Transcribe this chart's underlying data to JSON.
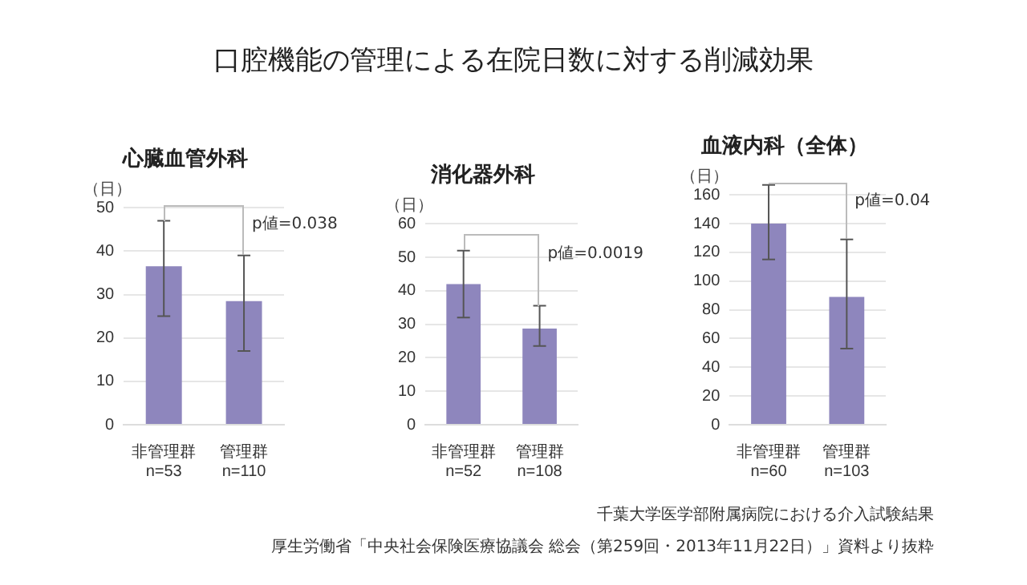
{
  "chart_data": [
    {
      "type": "other",
      "title": "口腔機能の管理による在院日数に対する削減効果",
      "annotations": [
        "千葉大学医学部附属病院における介入試験結果",
        "厚生労働省「中央社会保険医療協議会 総会（第259回・2013年11月22日）」資料より抜粋"
      ]
    },
    {
      "type": "bar",
      "title": "心臓血管外科",
      "ylabel": "（日）",
      "categories": [
        "非管理群\nn=53",
        "管理群\nn=110"
      ],
      "values": [
        36.5,
        28.5
      ],
      "errors": [
        [
          25,
          47
        ],
        [
          17,
          39
        ]
      ],
      "color": "#8e86bd",
      "ylim": [
        0,
        50
      ],
      "yticks": [
        0,
        10,
        20,
        30,
        40,
        50
      ],
      "grid": "y",
      "annotations": [
        "p値=0.038"
      ]
    },
    {
      "type": "bar",
      "title": "消化器外科",
      "ylabel": "（日）",
      "categories": [
        "非管理群\nn=52",
        "管理群\nn=108"
      ],
      "values": [
        42,
        28.7
      ],
      "errors": [
        [
          32,
          52
        ],
        [
          23.5,
          35.5
        ]
      ],
      "color": "#8e86bd",
      "ylim": [
        0,
        60
      ],
      "yticks": [
        0,
        10,
        20,
        30,
        40,
        50,
        60
      ],
      "grid": "y",
      "annotations": [
        "p値=0.0019"
      ]
    },
    {
      "type": "bar",
      "title": "血液内科（全体）",
      "ylabel": "（日）",
      "categories": [
        "非管理群\nn=60",
        "管理群\nn=103"
      ],
      "values": [
        140,
        89
      ],
      "errors": [
        [
          115,
          167
        ],
        [
          53,
          129
        ]
      ],
      "color": "#8e86bd",
      "ylim": [
        0,
        160
      ],
      "yticks": [
        0,
        20,
        40,
        60,
        80,
        100,
        120,
        140,
        160
      ],
      "grid": "y",
      "annotations": [
        "p値=0.04"
      ]
    }
  ]
}
